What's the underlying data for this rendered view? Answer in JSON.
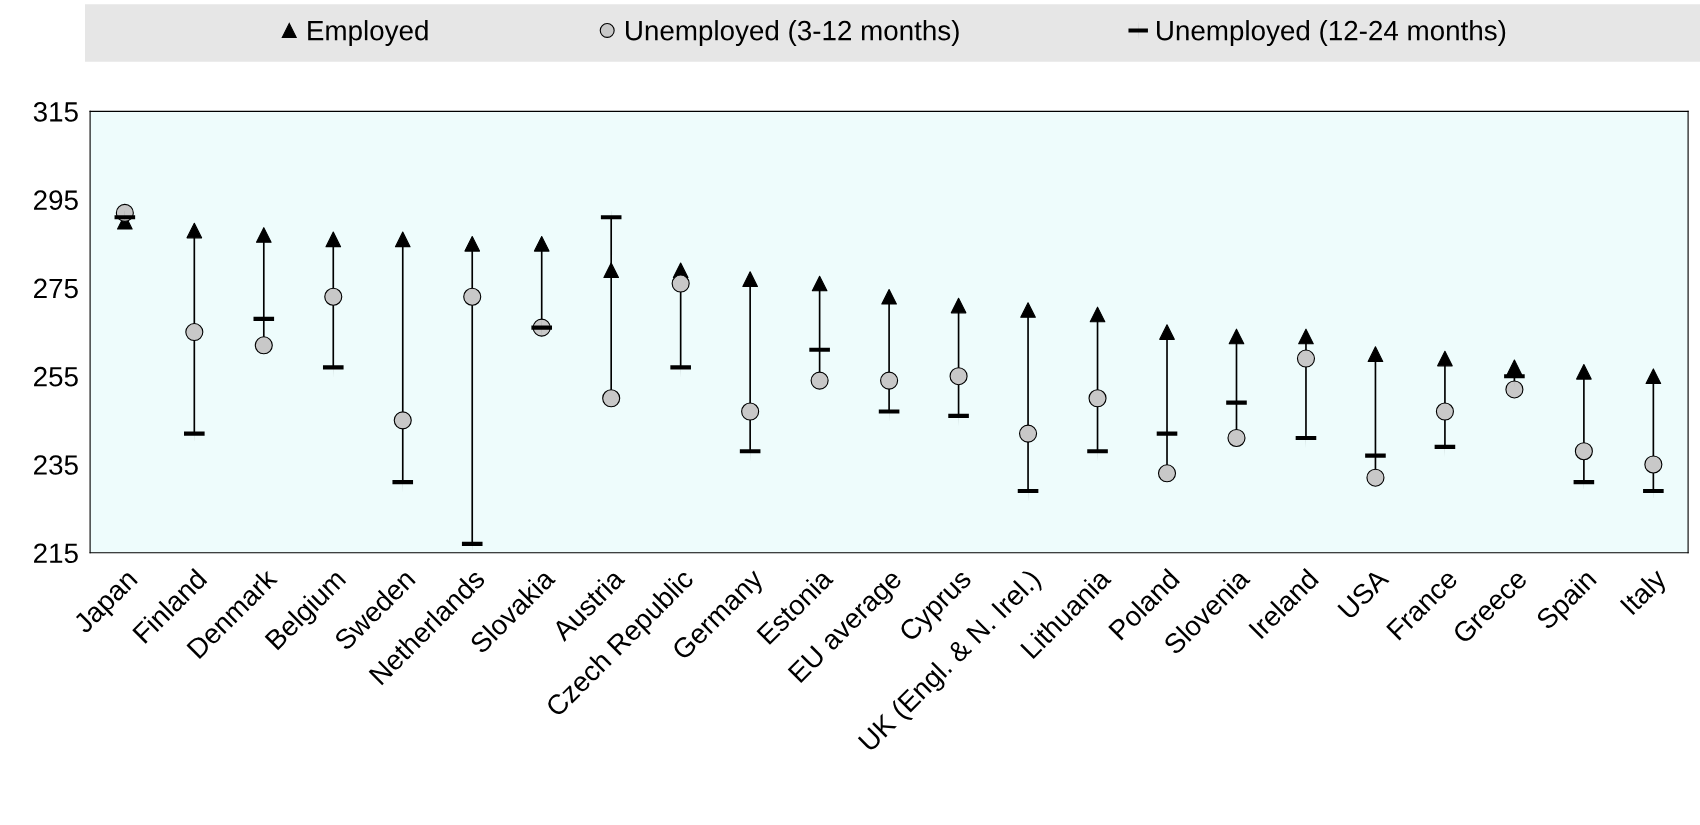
{
  "chart_data": {
    "type": "scatter",
    "categories": [
      "Japan",
      "Finland",
      "Denmark",
      "Belgium",
      "Sweden",
      "Netherlands",
      "Slovakia",
      "Austria",
      "Czech Republic",
      "Germany",
      "Estonia",
      "EU average",
      "Cyprus",
      "UK (Engl. & N. Irel.)",
      "Lithuania",
      "Poland",
      "Slovenia",
      "Ireland",
      "USA",
      "France",
      "Greece",
      "Spain",
      "Italy"
    ],
    "series": [
      {
        "name": "Employed",
        "color": "#000000",
        "marker": "triangle",
        "values": [
          290,
          288,
          287,
          286,
          286,
          285,
          285,
          279,
          279,
          277,
          276,
          273,
          271,
          270,
          269,
          265,
          264,
          264,
          260,
          259,
          257,
          256,
          255
        ]
      },
      {
        "name": "Unemployed (3-12 months)",
        "color": "#c8c8c8",
        "marker": "circle",
        "values": [
          292,
          265,
          262,
          273,
          245,
          273,
          266,
          250,
          276,
          247,
          254,
          254,
          255,
          242,
          250,
          233,
          241,
          259,
          232,
          247,
          252,
          238,
          235
        ]
      },
      {
        "name": "Unemployed (12-24 months)",
        "color": "#000000",
        "values": [
          291,
          242,
          268,
          257,
          231,
          217,
          266,
          291,
          257,
          238,
          261,
          247,
          246,
          229,
          238,
          242,
          249,
          241,
          237,
          239,
          255,
          231,
          229
        ]
      }
    ],
    "ylim": [
      215,
      315
    ],
    "yticks": [
      215,
      235,
      255,
      275,
      295,
      315
    ],
    "legend": "top",
    "grid": false
  }
}
